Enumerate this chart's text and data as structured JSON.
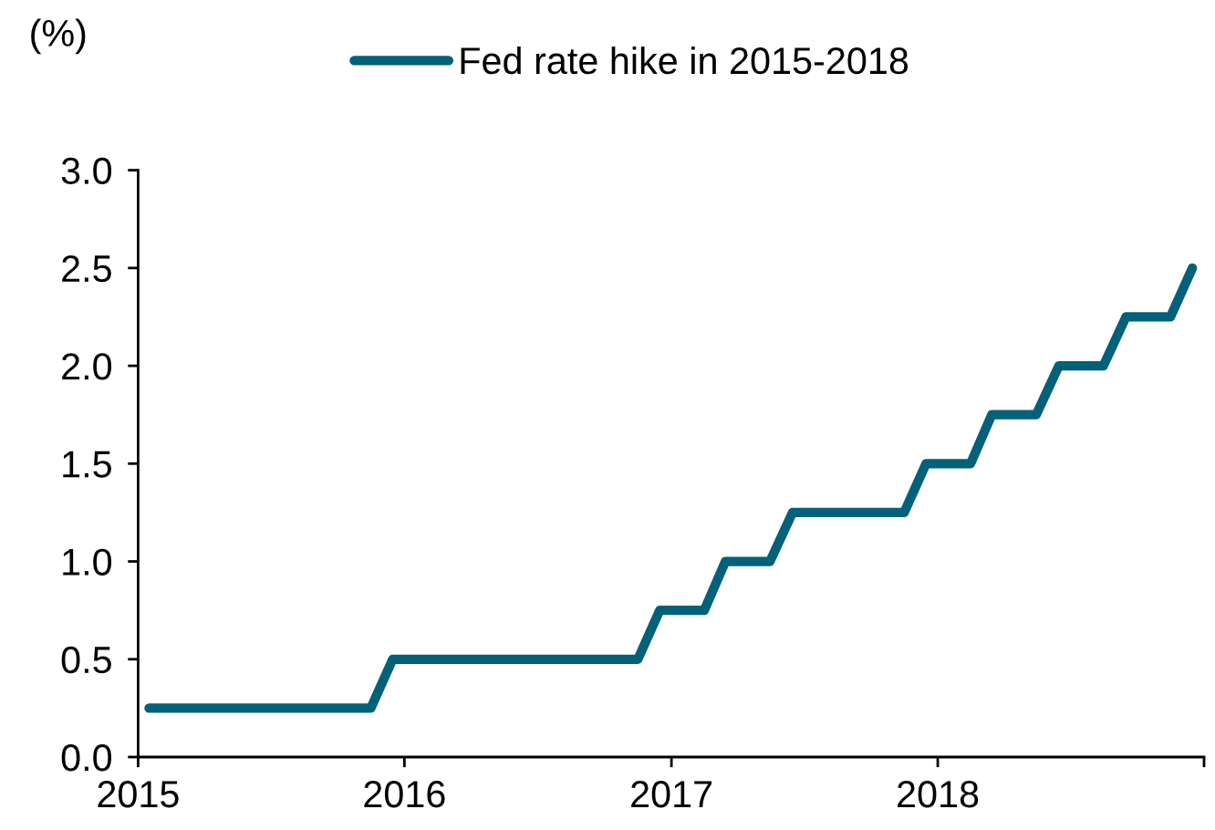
{
  "chart_data": {
    "type": "line",
    "ylabel": "(%)",
    "legend": "top",
    "x": [
      "2015-01-16",
      "2015-02-15",
      "2015-03-16",
      "2015-04-16",
      "2015-05-16",
      "2015-06-16",
      "2015-07-16",
      "2015-08-16",
      "2015-09-16",
      "2015-10-16",
      "2015-11-16",
      "2015-12-16",
      "2016-01-16",
      "2016-02-15",
      "2016-03-16",
      "2016-04-16",
      "2016-05-16",
      "2016-06-16",
      "2016-07-16",
      "2016-08-16",
      "2016-09-16",
      "2016-10-16",
      "2016-11-16",
      "2016-12-16",
      "2017-01-16",
      "2017-02-15",
      "2017-03-16",
      "2017-04-16",
      "2017-05-16",
      "2017-06-16",
      "2017-07-16",
      "2017-08-16",
      "2017-09-16",
      "2017-10-16",
      "2017-11-16",
      "2017-12-16",
      "2018-01-16",
      "2018-02-15",
      "2018-03-16",
      "2018-04-16",
      "2018-05-16",
      "2018-06-16",
      "2018-07-16",
      "2018-08-16",
      "2018-09-16",
      "2018-10-16",
      "2018-11-16",
      "2018-12-16"
    ],
    "series": [
      {
        "name": "Fed rate hike in 2015-2018",
        "color": "#006179",
        "values": [
          0.25,
          0.25,
          0.25,
          0.25,
          0.25,
          0.25,
          0.25,
          0.25,
          0.25,
          0.25,
          0.25,
          0.5,
          0.5,
          0.5,
          0.5,
          0.5,
          0.5,
          0.5,
          0.5,
          0.5,
          0.5,
          0.5,
          0.5,
          0.75,
          0.75,
          0.75,
          1.0,
          1.0,
          1.0,
          1.25,
          1.25,
          1.25,
          1.25,
          1.25,
          1.25,
          1.5,
          1.5,
          1.5,
          1.75,
          1.75,
          1.75,
          2.0,
          2.0,
          2.0,
          2.25,
          2.25,
          2.25,
          2.5
        ]
      }
    ],
    "xlim": [
      "2015-01-01",
      "2019-01-01"
    ],
    "xticks": [
      "2015",
      "2016",
      "2017",
      "2018",
      {
        "value": "2019",
        "label": null
      }
    ],
    "ylim": [
      0,
      3
    ],
    "yticks": [
      {
        "value": 0,
        "label": "0.0"
      },
      {
        "value": 0.5,
        "label": "0.5"
      },
      {
        "value": 1,
        "label": "1.0"
      },
      {
        "value": 1.5,
        "label": "1.5"
      },
      {
        "value": 2,
        "label": "2.0"
      },
      {
        "value": 2.5,
        "label": "2.5"
      },
      {
        "value": 3,
        "label": "3.0"
      }
    ]
  }
}
